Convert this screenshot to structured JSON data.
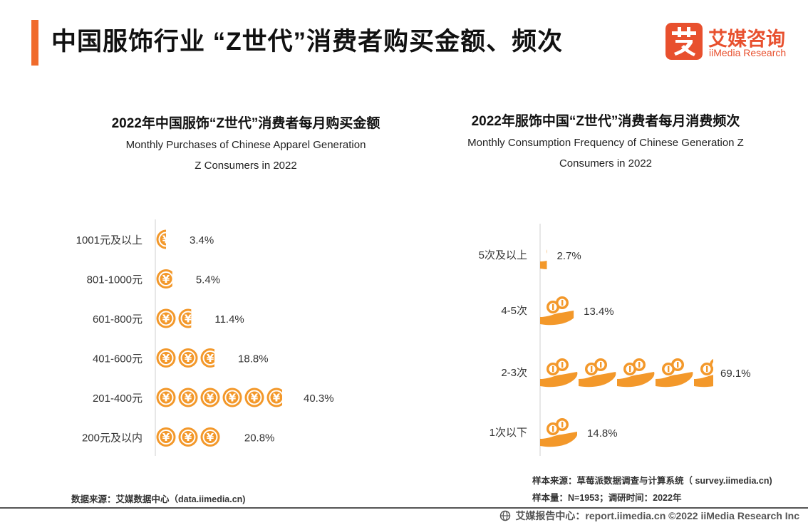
{
  "header": {
    "title": "中国服饰行业 “Z世代”消费者购买金额、频次",
    "logo_cn": "艾媒咨询",
    "logo_en": "iiMedia Research",
    "accent_color": "#f06b2c"
  },
  "chart_data": [
    {
      "type": "bar",
      "title": "2022年中国服饰“Z世代”消费者每月购买金额",
      "subtitle_lines": [
        "Monthly Purchases of Chinese Apparel Generation",
        "Z Consumers in 2022"
      ],
      "categories": [
        "1001元及以上",
        "801-1000元",
        "601-800元",
        "401-600元",
        "201-400元",
        "200元及以内"
      ],
      "values": [
        3.4,
        5.4,
        11.4,
        18.8,
        40.3,
        20.8
      ],
      "value_labels": [
        "3.4%",
        "5.4%",
        "11.4%",
        "18.8%",
        "40.3%",
        "20.8%"
      ],
      "unit": "%",
      "icon": "yuan-coin-icon",
      "color": "#f3982a"
    },
    {
      "type": "bar",
      "title": "2022年服饰中国“Z世代”消费者每月消费频次",
      "subtitle_lines": [
        "Monthly Consumption Frequency of Chinese Generation Z",
        "Consumers in 2022"
      ],
      "categories": [
        "5次及以上",
        "4-5次",
        "2-3次",
        "1次以下"
      ],
      "values": [
        2.7,
        13.4,
        69.1,
        14.8
      ],
      "value_labels": [
        "2.7%",
        "13.4%",
        "69.1%",
        "14.8%"
      ],
      "unit": "%",
      "icon": "hand-coins-icon",
      "color": "#f3982a"
    }
  ],
  "footnotes": {
    "left_source": "数据来源：艾媒数据中心（data.iimedia.cn)",
    "right_source": "样本来源：草莓派数据调查与计算系统（ survey.iimedia.cn)",
    "right_sample": "样本量：N=1953；调研时间：2022年"
  },
  "footer": {
    "text": "艾媒报告中心：report.iimedia.cn  ©2022  iiMedia Research  Inc"
  }
}
